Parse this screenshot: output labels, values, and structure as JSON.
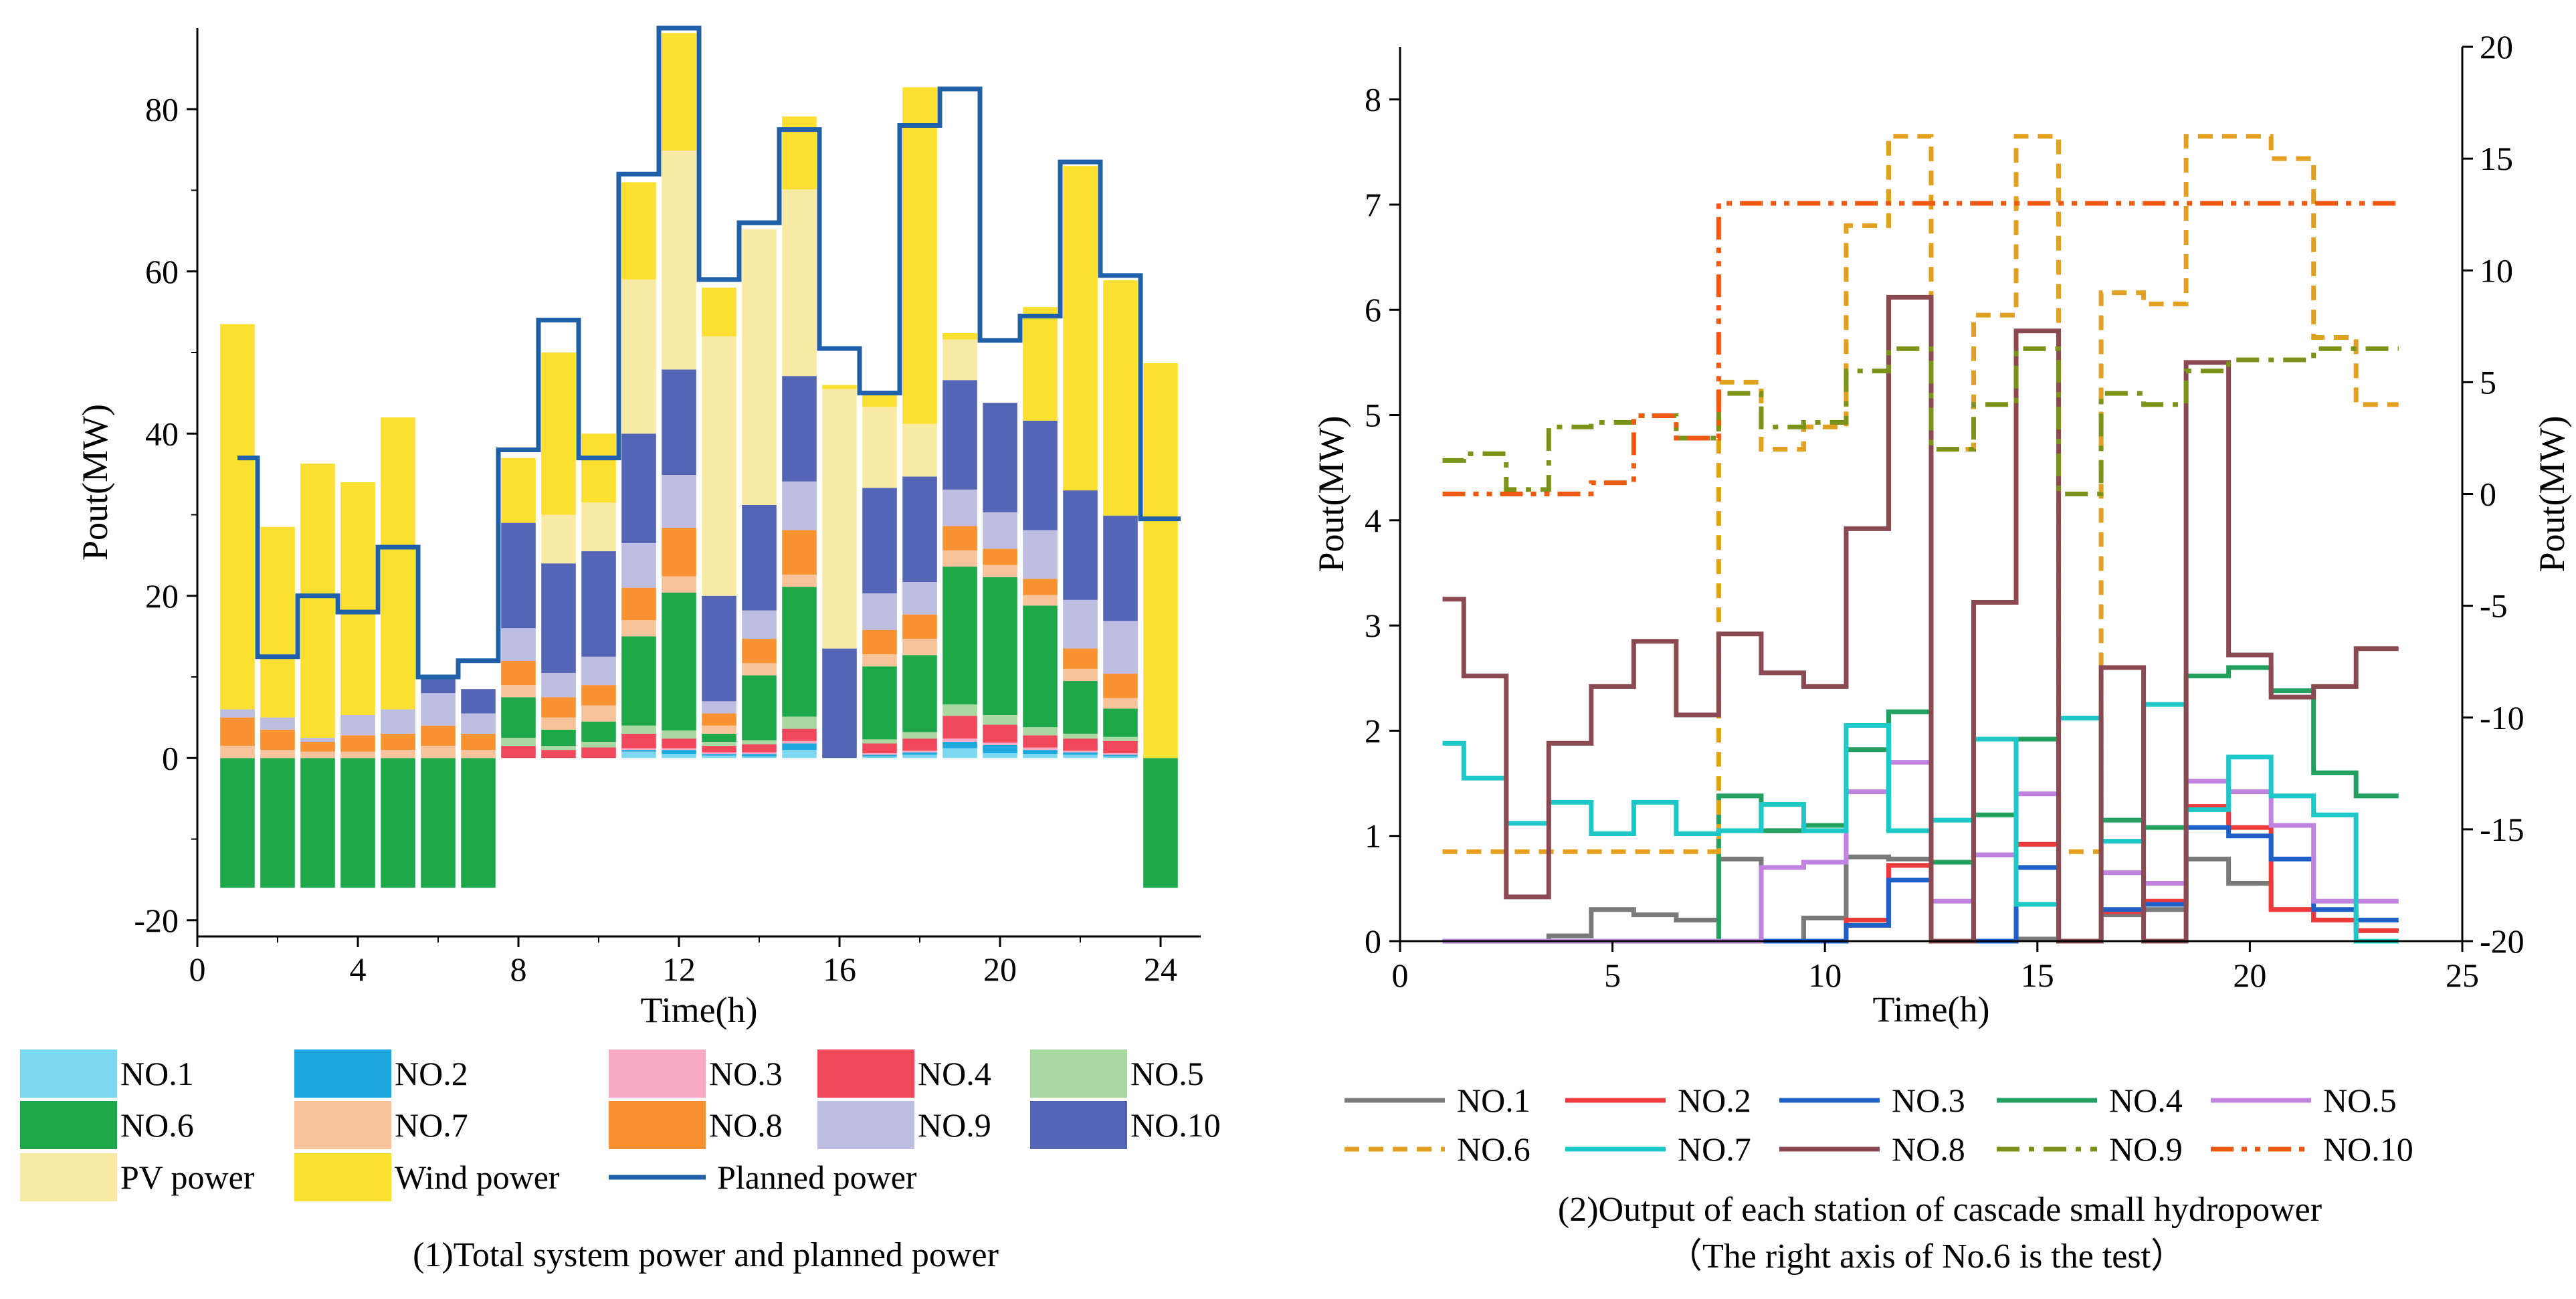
{
  "chart_data": [
    {
      "type": "bar",
      "subtype": "stacked",
      "caption": "(1)Total system power and planned power",
      "xlabel": "Time(h)",
      "ylabel": "Pout(MW)",
      "xlim": [
        0,
        25
      ],
      "ylim": [
        -22,
        90
      ],
      "xticks": [
        0,
        4,
        8,
        12,
        16,
        20,
        24
      ],
      "yticks": [
        -20,
        0,
        20,
        40,
        60,
        80
      ],
      "x": [
        1,
        2,
        3,
        4,
        5,
        6,
        7,
        8,
        9,
        10,
        11,
        12,
        13,
        14,
        15,
        16,
        17,
        18,
        19,
        20,
        21,
        22,
        23,
        24
      ],
      "series": [
        {
          "name": "NO.1",
          "color": "#7fd8f2",
          "values": [
            0,
            0,
            0,
            0,
            0,
            0,
            0,
            0,
            0,
            0,
            0.8,
            0.5,
            0.3,
            0.2,
            1.0,
            0,
            0.2,
            0.4,
            1.2,
            0.6,
            0.5,
            0.4,
            0.2,
            0
          ]
        },
        {
          "name": "NO.2",
          "color": "#1fa8e0",
          "values": [
            0,
            0,
            0,
            0,
            0,
            0,
            0,
            0,
            0,
            0,
            0.2,
            0.5,
            0.2,
            0.3,
            0.8,
            0,
            0.2,
            0.3,
            0.8,
            1.0,
            0.5,
            0.3,
            0.2,
            0
          ]
        },
        {
          "name": "NO.3",
          "color": "#f7a9c4",
          "values": [
            0,
            0,
            0,
            0,
            0,
            0,
            0,
            0,
            0,
            0,
            0.2,
            0.2,
            0.2,
            0.2,
            0.3,
            0,
            0.2,
            0.2,
            0.4,
            0.3,
            0.3,
            0.2,
            0.2,
            0
          ]
        },
        {
          "name": "NO.4",
          "color": "#f0485a",
          "values": [
            0,
            0,
            0,
            0,
            0,
            0,
            0,
            1.5,
            1.0,
            1.3,
            1.8,
            1.2,
            0.8,
            1.0,
            1.5,
            0,
            1.2,
            1.5,
            2.8,
            2.2,
            1.5,
            1.5,
            1.5,
            0
          ]
        },
        {
          "name": "NO.5",
          "color": "#a9d8a0",
          "values": [
            0,
            0,
            0,
            0,
            0,
            0,
            0,
            1.0,
            0.5,
            0.7,
            1.0,
            1.0,
            0.5,
            0.5,
            1.5,
            0,
            0.5,
            0.8,
            1.4,
            1.2,
            1.0,
            0.6,
            0.5,
            0
          ]
        },
        {
          "name": "NO.6",
          "color": "#1ea84a",
          "values": [
            -16,
            -16,
            -16,
            -16,
            -16,
            -16,
            -16,
            5.0,
            2.0,
            2.5,
            11.0,
            17.0,
            1.0,
            8.0,
            16.0,
            0,
            9.0,
            9.5,
            17.0,
            17.0,
            15.0,
            6.5,
            3.5,
            -16
          ]
        },
        {
          "name": "NO.7",
          "color": "#f8c39a",
          "values": [
            1.5,
            1.0,
            0.8,
            0.8,
            1.0,
            1.5,
            1.0,
            1.5,
            1.5,
            2.0,
            2.0,
            2.0,
            1.0,
            1.5,
            1.5,
            0,
            1.5,
            2.0,
            2.0,
            1.5,
            1.3,
            1.5,
            1.3,
            0
          ]
        },
        {
          "name": "NO.8",
          "color": "#f89232",
          "values": [
            3.5,
            2.5,
            1.2,
            2.0,
            2.0,
            2.5,
            2.0,
            3.0,
            2.5,
            2.5,
            4.0,
            6.0,
            1.5,
            3.0,
            5.5,
            0,
            3.0,
            3.0,
            3.0,
            2.0,
            2.0,
            2.5,
            3.0,
            0
          ]
        },
        {
          "name": "NO.9",
          "color": "#bcbde0",
          "values": [
            1.0,
            1.5,
            0.5,
            2.5,
            3.0,
            4.0,
            2.5,
            4.0,
            3.0,
            3.5,
            5.5,
            6.5,
            1.5,
            3.5,
            6.0,
            0,
            4.5,
            4.0,
            4.5,
            4.5,
            6.0,
            6.0,
            6.5,
            0
          ]
        },
        {
          "name": "NO.10",
          "color": "#5565b5",
          "values": [
            0,
            0,
            0,
            0,
            0,
            2.0,
            3.0,
            13.0,
            13.5,
            13.0,
            13.5,
            13.0,
            13.0,
            13.0,
            13.0,
            13.5,
            13.0,
            13.0,
            13.5,
            13.5,
            13.5,
            13.5,
            13.0,
            0
          ]
        },
        {
          "name": "PV power",
          "color": "#f8eaa5",
          "values": [
            0,
            0,
            0,
            0,
            0,
            0,
            0,
            0,
            6.0,
            6.0,
            19.0,
            27.0,
            32.0,
            34.0,
            23.0,
            32.0,
            10.0,
            6.5,
            5.0,
            0,
            0,
            0,
            0,
            0
          ]
        },
        {
          "name": "Wind power",
          "color": "#fbe031",
          "values": [
            47.5,
            23.5,
            33.8,
            28.7,
            36.0,
            0,
            0,
            8.0,
            20.0,
            8.5,
            12.0,
            14.5,
            6.0,
            0,
            9.0,
            0.5,
            1.5,
            41.5,
            0.8,
            0,
            14.0,
            40.0,
            29.0,
            48.7
          ]
        }
      ],
      "planned_power": {
        "name": "Planned power",
        "color": "#1f60a8",
        "values": [
          37,
          12.5,
          20,
          18,
          26,
          10,
          12,
          38,
          54,
          37,
          72,
          90,
          59,
          66,
          77.5,
          50.5,
          45,
          78,
          82.5,
          51.5,
          54.5,
          73.5,
          59.5,
          29.5
        ]
      },
      "legend": [
        "NO.1",
        "NO.2",
        "NO.3",
        "NO.4",
        "NO.5",
        "NO.6",
        "NO.7",
        "NO.8",
        "NO.9",
        "NO.10",
        "PV power",
        "Wind power",
        "Planned power"
      ]
    },
    {
      "type": "line",
      "subtype": "step",
      "caption_line1": "(2)Output of each station of cascade small hydropower",
      "caption_line2": "（The right axis of No.6 is the test）",
      "xlabel": "Time(h)",
      "ylabel": "Pout(MW)",
      "ylabel_right": "Pout(MW)",
      "xlim": [
        0,
        25
      ],
      "ylim": [
        0,
        8.5
      ],
      "ylim_right": [
        -20,
        20
      ],
      "xticks": [
        0,
        5,
        10,
        15,
        20,
        25
      ],
      "yticks": [
        0,
        1,
        2,
        3,
        4,
        5,
        6,
        7,
        8
      ],
      "yticks_right": [
        -20,
        -15,
        -10,
        -5,
        0,
        5,
        10,
        15,
        20
      ],
      "x": [
        1,
        2,
        3,
        4,
        5,
        6,
        7,
        8,
        9,
        10,
        11,
        12,
        13,
        14,
        15,
        16,
        17,
        18,
        19,
        20,
        21,
        22,
        23
      ],
      "series": [
        {
          "name": "NO.1",
          "color": "#7a7a7a",
          "dash": "solid",
          "axis": "left",
          "values": [
            0,
            0,
            0,
            0.05,
            0.3,
            0.25,
            0.2,
            0.78,
            0,
            0.22,
            0.8,
            0.78,
            0,
            0,
            0.02,
            0,
            0.25,
            0.3,
            0.78,
            0.55,
            0.3,
            0.2,
            0.1
          ]
        },
        {
          "name": "NO.2",
          "color": "#ee3a3a",
          "dash": "solid",
          "axis": "left",
          "values": [
            0,
            0,
            0,
            0,
            0,
            0,
            0,
            0,
            0,
            0,
            0.2,
            0.72,
            0,
            0,
            0.92,
            0,
            0.28,
            0.38,
            1.28,
            1.08,
            0.3,
            0.2,
            0.1
          ]
        },
        {
          "name": "NO.3",
          "color": "#1f5fc8",
          "dash": "solid",
          "axis": "left",
          "values": [
            0,
            0,
            0,
            0,
            0,
            0,
            0,
            0,
            0,
            0,
            0.15,
            0.58,
            0,
            0,
            0.7,
            0,
            0.3,
            0.35,
            1.08,
            1.0,
            0.78,
            0.3,
            0.2
          ]
        },
        {
          "name": "NO.4",
          "color": "#22a060",
          "dash": "solid",
          "axis": "left",
          "values": [
            0,
            0,
            0,
            0,
            0,
            0,
            0,
            1.38,
            1.05,
            1.1,
            1.82,
            2.18,
            0.75,
            1.2,
            1.92,
            0,
            1.15,
            1.08,
            2.52,
            2.6,
            2.38,
            1.6,
            1.38
          ]
        },
        {
          "name": "NO.5",
          "color": "#c084e0",
          "dash": "solid",
          "axis": "left",
          "values": [
            0,
            0,
            0,
            0,
            0,
            0,
            0,
            0,
            0.7,
            0.75,
            1.42,
            1.7,
            0.38,
            0.82,
            1.4,
            0,
            0.65,
            0.55,
            1.52,
            1.42,
            1.1,
            0.38,
            0.38
          ]
        },
        {
          "name": "NO.6",
          "color": "#e2a020",
          "dash": "dashed",
          "axis": "right",
          "values": [
            -16,
            -16,
            -16,
            -16,
            -16,
            -16,
            -16,
            5,
            2,
            3,
            12,
            16,
            2,
            8,
            16,
            -16,
            9,
            8.5,
            16,
            16,
            15,
            7,
            4
          ]
        },
        {
          "name": "NO.7",
          "color": "#1fc8c8",
          "dash": "solid",
          "axis": "left",
          "values": [
            1.88,
            1.55,
            1.12,
            1.32,
            1.02,
            1.32,
            1.02,
            1.05,
            1.3,
            1.05,
            2.05,
            1.05,
            1.15,
            1.92,
            0.35,
            2.12,
            0.95,
            2.25,
            1.25,
            1.75,
            1.38,
            1.2,
            0
          ]
        },
        {
          "name": "NO.8",
          "color": "#8b4a52",
          "dash": "solid",
          "axis": "left",
          "values": [
            3.25,
            2.52,
            0.42,
            1.88,
            2.42,
            2.85,
            2.15,
            2.92,
            2.55,
            2.42,
            3.92,
            6.12,
            0,
            3.22,
            5.8,
            0,
            2.6,
            0,
            5.5,
            2.72,
            2.32,
            2.42,
            2.78
          ]
        },
        {
          "name": "NO.9",
          "color": "#7a9318",
          "dash": "dash-dot",
          "axis": "right",
          "values": [
            1.5,
            1.8,
            0.2,
            3,
            3.2,
            3.5,
            2.5,
            4.5,
            3,
            3.2,
            5.5,
            6.5,
            2,
            4,
            6.5,
            0,
            4.5,
            4,
            5.5,
            6,
            6,
            6.5,
            6.5
          ]
        },
        {
          "name": "NO.10",
          "color": "#ee5a10",
          "dash": "dash-dot-dot",
          "axis": "right",
          "values": [
            0,
            0,
            0,
            0,
            0.5,
            3.5,
            2.5,
            13,
            13,
            13,
            13,
            13,
            13,
            13,
            13,
            13,
            13,
            13,
            13,
            13,
            13,
            13,
            13
          ]
        }
      ],
      "legend": [
        "NO.1",
        "NO.2",
        "NO.3",
        "NO.4",
        "NO.5",
        "NO.6",
        "NO.7",
        "NO.8",
        "NO.9",
        "NO.10"
      ]
    }
  ]
}
